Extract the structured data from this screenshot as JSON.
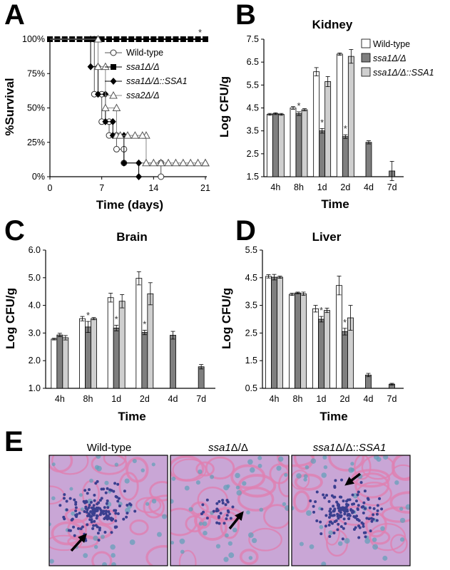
{
  "colors": {
    "wild_type": "#ffffff",
    "ssa1": "#7f7f7f",
    "ssa1_rescued": "#cfcfcf",
    "tissue_bg": "#c9a6d6",
    "tissue_pink": "#e07fb0",
    "tissue_nuclei": "#3a3f8f"
  },
  "panels": {
    "A": "A",
    "B": "B",
    "C": "C",
    "D": "D",
    "E": "E"
  },
  "chart_data": [
    {
      "id": "A",
      "type": "line",
      "xlabel": "Time (days)",
      "ylabel": "%Survival",
      "xticks": [
        "0",
        "7",
        "14",
        "21"
      ],
      "yticks": [
        "0%",
        "25%",
        "50%",
        "75%",
        "100%"
      ],
      "xlim": [
        0,
        21
      ],
      "ylim": [
        0,
        100
      ],
      "annotation": "*",
      "legend_position": "right",
      "series": [
        {
          "name": "Wild-type",
          "marker": "open-circle",
          "x": [
            0,
            6,
            6,
            7,
            7,
            8,
            8,
            9,
            9,
            10,
            10,
            15,
            15
          ],
          "y": [
            100,
            100,
            60,
            60,
            40,
            40,
            30,
            30,
            20,
            20,
            10,
            10,
            0
          ]
        },
        {
          "name": "ssa1Δ/Δ",
          "marker": "filled-square",
          "x": [
            0,
            21
          ],
          "y": [
            100,
            100
          ]
        },
        {
          "name": "ssa1Δ/Δ::SSA1",
          "marker": "filled-diamond",
          "x": [
            0,
            5.5,
            5.5,
            6.5,
            6.5,
            7.5,
            7.5,
            8.5,
            8.5,
            10,
            10,
            12,
            12
          ],
          "y": [
            100,
            100,
            80,
            80,
            60,
            60,
            40,
            40,
            30,
            30,
            10,
            10,
            0
          ]
        },
        {
          "name": "ssa2Δ/Δ",
          "marker": "open-triangle",
          "x": [
            0,
            6.5,
            6.5,
            7.5,
            7.5,
            9,
            9,
            13,
            13,
            21
          ],
          "y": [
            100,
            100,
            80,
            80,
            50,
            50,
            30,
            30,
            10,
            10
          ]
        }
      ]
    },
    {
      "id": "B",
      "type": "bar",
      "title": "Kidney",
      "xlabel": "Time",
      "ylabel": "Log CFU/g",
      "categories": [
        "4h",
        "8h",
        "1d",
        "2d",
        "4d",
        "7d"
      ],
      "ylim": [
        1.5,
        7.5
      ],
      "yticks": [
        "1.5",
        "2.5",
        "3.5",
        "4.5",
        "5.5",
        "6.5",
        "7.5"
      ],
      "legend_position": "top-right",
      "series": [
        {
          "name": "Wild-type",
          "values": [
            4.22,
            4.5,
            6.08,
            6.85,
            null,
            null
          ],
          "err": [
            0.04,
            0.06,
            0.18,
            0.05,
            0,
            0
          ]
        },
        {
          "name": "ssa1Δ/Δ",
          "values": [
            4.25,
            4.25,
            3.5,
            3.25,
            3.0,
            1.75
          ],
          "err": [
            0.04,
            0.08,
            0.1,
            0.08,
            0.07,
            0.42
          ]
        },
        {
          "name": "ssa1Δ/Δ::SSA1",
          "values": [
            4.22,
            4.42,
            5.65,
            6.75,
            null,
            null
          ],
          "err": [
            0.04,
            0.05,
            0.22,
            0.3,
            0,
            0
          ]
        }
      ],
      "significance": [
        {
          "category": "8h",
          "series": "ssa1Δ/Δ",
          "label": "*"
        },
        {
          "category": "1d",
          "series": "ssa1Δ/Δ",
          "label": "*"
        },
        {
          "category": "2d",
          "series": "ssa1Δ/Δ",
          "label": "*"
        }
      ]
    },
    {
      "id": "C",
      "type": "bar",
      "title": "Brain",
      "xlabel": "Time",
      "ylabel": "Log CFU/g",
      "categories": [
        "4h",
        "8h",
        "1d",
        "2d",
        "4d",
        "7d"
      ],
      "ylim": [
        1.0,
        6.0
      ],
      "yticks": [
        "1.0",
        "2.0",
        "3.0",
        "4.0",
        "5.0",
        "6.0"
      ],
      "series": [
        {
          "name": "Wild-type",
          "values": [
            2.78,
            3.52,
            4.28,
            4.98,
            null,
            null
          ],
          "err": [
            0.03,
            0.08,
            0.16,
            0.24,
            0,
            0
          ]
        },
        {
          "name": "ssa1Δ/Δ",
          "values": [
            2.93,
            3.22,
            3.18,
            3.02,
            2.92,
            1.78
          ],
          "err": [
            0.06,
            0.2,
            0.1,
            0.08,
            0.14,
            0.08
          ]
        },
        {
          "name": "ssa1Δ/Δ::SSA1",
          "values": [
            2.83,
            3.52,
            4.15,
            4.42,
            null,
            null
          ],
          "err": [
            0.08,
            0.04,
            0.24,
            0.4,
            0,
            0
          ]
        }
      ],
      "significance": [
        {
          "category": "8h",
          "series": "ssa1Δ/Δ",
          "label": "*"
        },
        {
          "category": "1d",
          "series": "ssa1Δ/Δ",
          "label": "*"
        },
        {
          "category": "2d",
          "series": "ssa1Δ/Δ",
          "label": "*"
        }
      ]
    },
    {
      "id": "D",
      "type": "bar",
      "title": "Liver",
      "xlabel": "Time",
      "ylabel": "Log CFU/g",
      "categories": [
        "4h",
        "8h",
        "1d",
        "2d",
        "4d",
        "7d"
      ],
      "ylim": [
        0.5,
        5.5
      ],
      "yticks": [
        "0.5",
        "1.5",
        "2.5",
        "3.5",
        "4.5",
        "5.5"
      ],
      "series": [
        {
          "name": "Wild-type",
          "values": [
            4.55,
            3.9,
            3.38,
            4.22,
            null,
            null
          ],
          "err": [
            0.06,
            0.04,
            0.12,
            0.34,
            0,
            0
          ]
        },
        {
          "name": "ssa1Δ/Δ",
          "values": [
            4.52,
            3.95,
            3.0,
            2.55,
            0.98,
            0.65
          ],
          "err": [
            0.1,
            0.03,
            0.1,
            0.12,
            0.06,
            0.03
          ]
        },
        {
          "name": "ssa1Δ/Δ::SSA1",
          "values": [
            4.52,
            3.92,
            3.32,
            3.05,
            null,
            null
          ],
          "err": [
            0.04,
            0.06,
            0.08,
            0.45,
            0,
            0
          ]
        }
      ],
      "significance": [
        {
          "category": "1d",
          "series": "ssa1Δ/Δ",
          "label": "*"
        },
        {
          "category": "2d",
          "series": "ssa1Δ/Δ",
          "label": "*"
        }
      ]
    }
  ],
  "histology": [
    {
      "caption_main": "Wild-type",
      "caption_suffix": ""
    },
    {
      "caption_main": "ssa1",
      "caption_suffix": "Δ/Δ"
    },
    {
      "caption_main": "ssa1",
      "caption_suffix": "Δ/Δ::",
      "caption_italic_end": "SSA1"
    }
  ]
}
